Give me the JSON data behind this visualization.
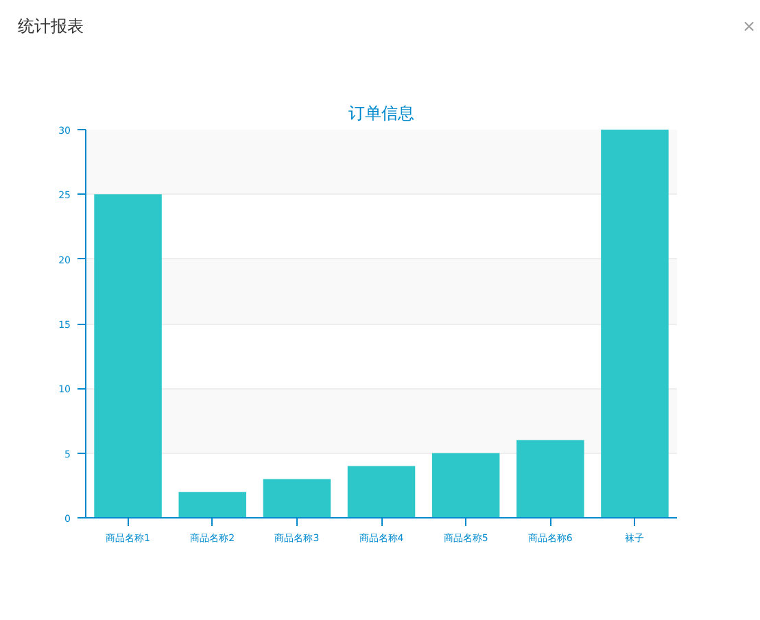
{
  "chart_data": {
    "type": "bar",
    "title": "订单信息",
    "annotations": [
      "统计报表",
      "×"
    ],
    "categories": [
      "商品名称1",
      "商品名称2",
      "商品名称3",
      "商品名称4",
      "商品名称5",
      "商品名称6",
      "袜子"
    ],
    "values": [
      25,
      2,
      3,
      4,
      5,
      6,
      30
    ],
    "color": "#2ec7c9",
    "ylim": [
      0,
      30
    ],
    "yticks": [
      0,
      5,
      10,
      15,
      20,
      25,
      30
    ],
    "grid": "y"
  }
}
